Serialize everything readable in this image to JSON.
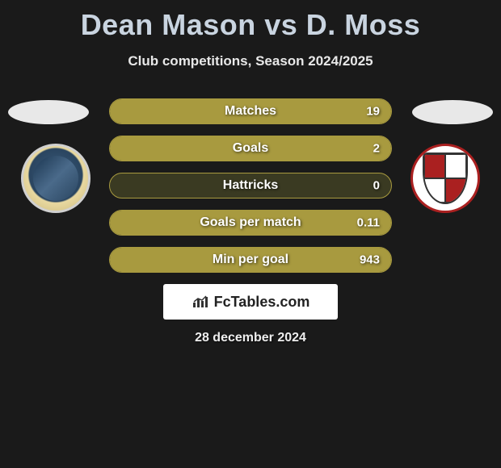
{
  "title": "Dean Mason vs D. Moss",
  "subtitle": "Club competitions, Season 2024/2025",
  "date": "28 december 2024",
  "brand": {
    "name": "FcTables.com"
  },
  "colors": {
    "bar_fill": "#a89a3f",
    "bar_border": "#a89a3f",
    "bar_bg": "#3a3a22",
    "title_color": "#c9d4e0"
  },
  "stats": [
    {
      "label": "Matches",
      "value": "19",
      "fill_pct": 100
    },
    {
      "label": "Goals",
      "value": "2",
      "fill_pct": 100
    },
    {
      "label": "Hattricks",
      "value": "0",
      "fill_pct": 0
    },
    {
      "label": "Goals per match",
      "value": "0.11",
      "fill_pct": 100
    },
    {
      "label": "Min per goal",
      "value": "943",
      "fill_pct": 100
    }
  ]
}
